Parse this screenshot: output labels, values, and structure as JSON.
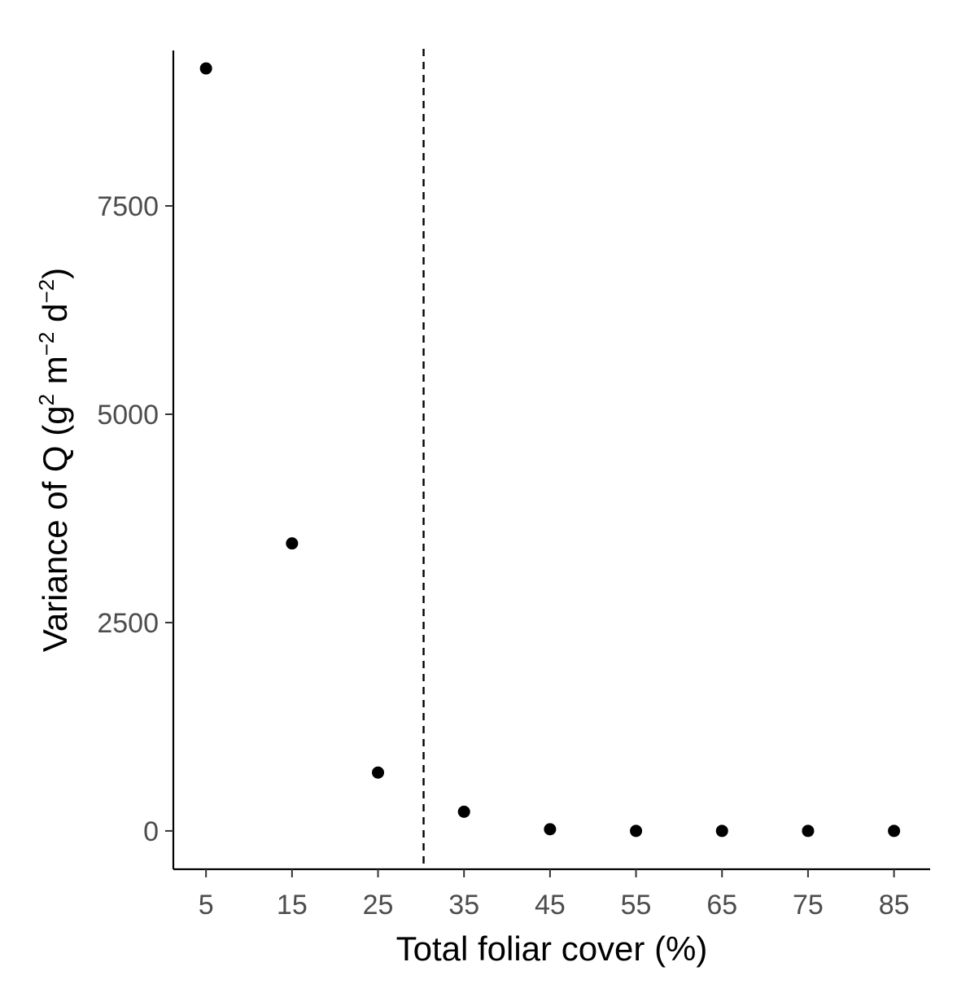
{
  "chart_data": {
    "type": "scatter",
    "title": "",
    "xlabel": "Total foliar cover (%)",
    "ylabel": {
      "text": "Variance of Q (g",
      "sup1": "2",
      "mid1": " m",
      "sup2": "−2",
      "mid2": " d",
      "sup3": "−2",
      "end": ")"
    },
    "x_ticks": [
      "5",
      "15",
      "25",
      "35",
      "45",
      "55",
      "65",
      "75",
      "85"
    ],
    "y_ticks": [
      "0",
      "2500",
      "5000",
      "7500"
    ],
    "xlim": [
      1.2,
      89.2
    ],
    "ylim": [
      -460,
      9600
    ],
    "grid": false,
    "legend": "none",
    "points_color": "#000000",
    "series": [
      {
        "x": [
          5,
          15,
          25,
          35,
          45,
          55,
          65,
          75,
          85
        ],
        "y": [
          9150,
          3450,
          700,
          230,
          20,
          0,
          0,
          0,
          0
        ]
      }
    ],
    "reference_lines": [
      {
        "orientation": "vertical",
        "x": 30.3,
        "style": "dashed"
      }
    ]
  }
}
